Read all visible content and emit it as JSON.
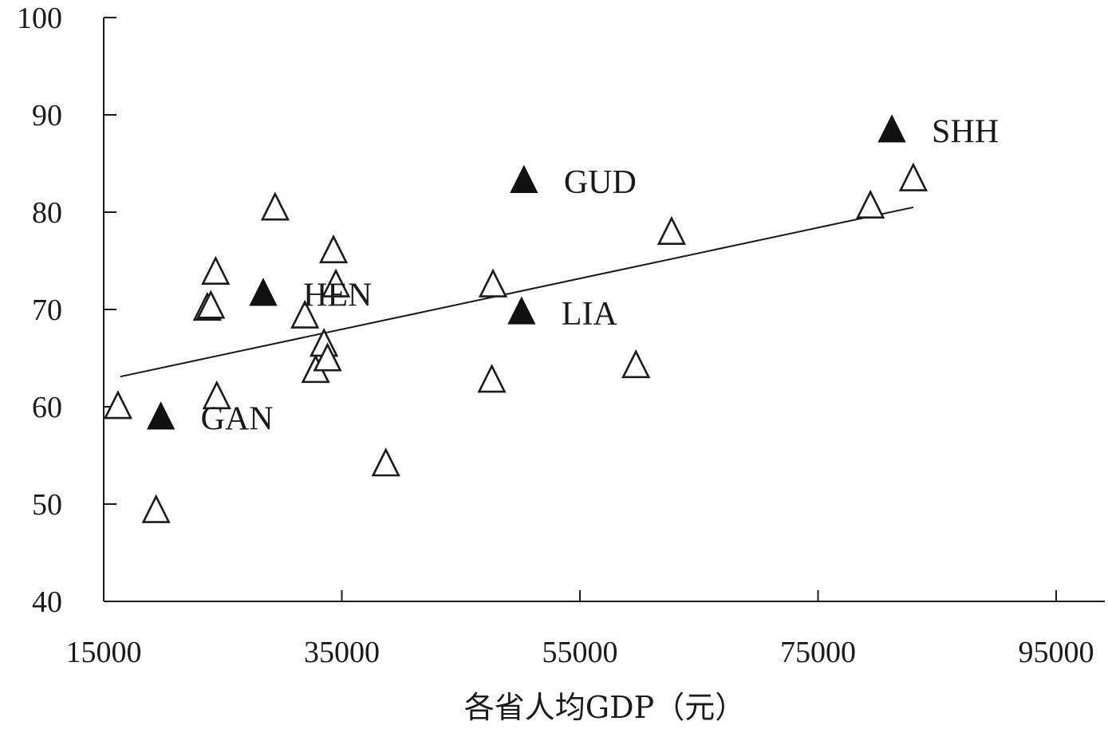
{
  "chart_data": {
    "type": "scatter",
    "title": "",
    "xlabel": "各省人均GDP（元）",
    "ylabel": "",
    "xlim": [
      15000,
      99000
    ],
    "ylim": [
      40,
      100
    ],
    "xticks": [
      15000,
      35000,
      55000,
      75000,
      95000
    ],
    "yticks": [
      40,
      50,
      60,
      70,
      80,
      90,
      100
    ],
    "grid": false,
    "legend": "none",
    "marker": "triangle",
    "colors": {
      "axis": "#1a1a1a",
      "open_fill": "#ffffff",
      "filled": "#111111"
    },
    "series": [
      {
        "style": "open",
        "points": [
          [
            16200,
            59.9
          ],
          [
            19400,
            49.2
          ],
          [
            23700,
            70.0
          ],
          [
            24000,
            70.2
          ],
          [
            24400,
            73.7
          ],
          [
            24500,
            60.9
          ],
          [
            29400,
            80.3
          ],
          [
            31900,
            69.2
          ],
          [
            32800,
            63.6
          ],
          [
            33500,
            66.3
          ],
          [
            33800,
            64.8
          ],
          [
            34300,
            75.9
          ],
          [
            34500,
            72.4
          ],
          [
            38700,
            54.0
          ],
          [
            47600,
            62.6
          ],
          [
            47700,
            72.4
          ],
          [
            59700,
            64.1
          ],
          [
            62700,
            77.8
          ],
          [
            79400,
            80.5
          ],
          [
            83000,
            83.3
          ]
        ]
      },
      {
        "style": "filled",
        "points": [
          {
            "x": 19800,
            "y": 58.8,
            "label": "GAN"
          },
          {
            "x": 28400,
            "y": 71.5,
            "label": "HEN"
          },
          {
            "x": 50300,
            "y": 83.1,
            "label": "GUD"
          },
          {
            "x": 50100,
            "y": 69.6,
            "label": "LIA"
          },
          {
            "x": 81200,
            "y": 88.3,
            "label": "SHH"
          }
        ]
      }
    ],
    "trendline": {
      "x": [
        16400,
        83000
      ],
      "y": [
        63.1,
        80.5
      ]
    }
  }
}
